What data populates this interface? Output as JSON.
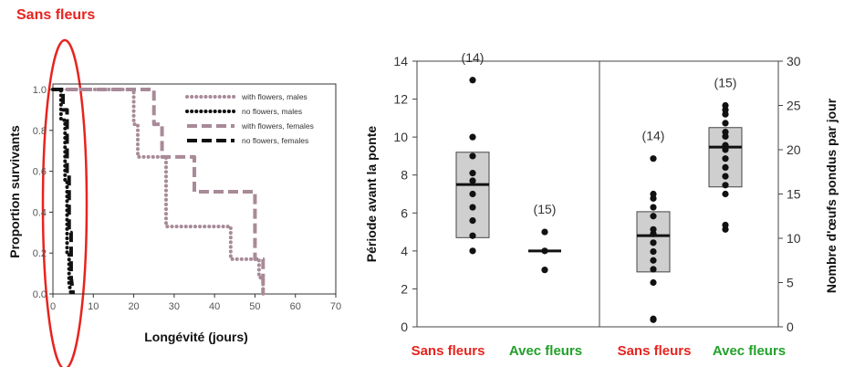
{
  "annotation": {
    "text": "Sans fleurs",
    "color": "#e8231e"
  },
  "chart_data": [
    {
      "type": "line",
      "title": "",
      "xlabel": "Longévité (jours)",
      "ylabel": "Proportion survivants",
      "xlim": [
        0,
        70
      ],
      "ylim": [
        0,
        1.0
      ],
      "xticks": [
        "0",
        "10",
        "20",
        "30",
        "40",
        "50",
        "60",
        "70"
      ],
      "yticks": [
        "0.0",
        "0.2",
        "0.4",
        "0.6",
        "0.8",
        "1.0"
      ],
      "legend_position": "top-right",
      "series": [
        {
          "name": "with flowers, males",
          "style": "dotted",
          "color": "#a88a98",
          "x": [
            0,
            20,
            20,
            21,
            21,
            28,
            28,
            44,
            44,
            51,
            51,
            52,
            52
          ],
          "y": [
            1.0,
            1.0,
            0.83,
            0.83,
            0.67,
            0.67,
            0.33,
            0.33,
            0.17,
            0.17,
            0.08,
            0.08,
            0.0
          ]
        },
        {
          "name": "no flowers, males",
          "style": "dotted",
          "color": "#111111",
          "x": [
            0,
            2,
            2,
            3,
            3,
            3.5,
            3.5,
            4,
            4,
            4.5
          ],
          "y": [
            1.0,
            1.0,
            0.85,
            0.85,
            0.55,
            0.55,
            0.2,
            0.2,
            0.05,
            0.0
          ]
        },
        {
          "name": "with flowers, females",
          "style": "dashed",
          "color": "#a88a98",
          "x": [
            0,
            25,
            25,
            27,
            27,
            35,
            35,
            39,
            39,
            50,
            50,
            52,
            52
          ],
          "y": [
            1.0,
            1.0,
            0.83,
            0.83,
            0.67,
            0.67,
            0.5,
            0.5,
            0.5,
            0.5,
            0.17,
            0.17,
            0.0
          ]
        },
        {
          "name": "no flowers, females",
          "style": "dashed",
          "color": "#111111",
          "x": [
            0,
            2.5,
            2.5,
            3.5,
            3.5,
            4,
            4,
            4.5,
            4.5,
            5
          ],
          "y": [
            1.0,
            1.0,
            0.9,
            0.9,
            0.6,
            0.6,
            0.3,
            0.3,
            0.08,
            0.0
          ]
        }
      ]
    },
    {
      "type": "box",
      "title": "",
      "xlabel": "",
      "ylabel_left": "Période avant la ponte",
      "ylabel_right": "Nombre d'œufs pondus par jour",
      "ylim_left": [
        0,
        14
      ],
      "ylim_right": [
        0,
        30
      ],
      "yticks_left": [
        "0",
        "2",
        "4",
        "6",
        "8",
        "10",
        "12",
        "14"
      ],
      "yticks_right": [
        "0",
        "5",
        "10",
        "15",
        "20",
        "25",
        "30"
      ],
      "groups": [
        {
          "label": "Sans fleurs",
          "color": "#e8231e",
          "axis": "left",
          "n": "(14)",
          "q1": 4.7,
          "median": 7.5,
          "q3": 9.2,
          "points": [
            4.0,
            4.8,
            5.6,
            6.3,
            7.0,
            7.7,
            8.1,
            9.0,
            10.0,
            13.0
          ]
        },
        {
          "label": "Avec fleurs",
          "color": "#22a02a",
          "axis": "left",
          "n": "(15)",
          "q1": 4.0,
          "median": 4.0,
          "q3": 4.0,
          "points": [
            3.0,
            4.0,
            5.0
          ]
        },
        {
          "label": "Sans fleurs",
          "color": "#e8231e",
          "axis": "right",
          "n": "(14)",
          "q1": 6.2,
          "median": 10.3,
          "q3": 13.0,
          "points": [
            0.8,
            0.9,
            5.0,
            6.5,
            7.5,
            8.5,
            9.5,
            10.5,
            11.0,
            12.5,
            13.5,
            14.5,
            15.0,
            19.0
          ]
        },
        {
          "label": "Avec fleurs",
          "color": "#22a02a",
          "axis": "right",
          "n": "(15)",
          "q1": 15.8,
          "median": 20.3,
          "q3": 22.5,
          "points": [
            11.0,
            11.5,
            15.0,
            16.0,
            17.0,
            18.0,
            19.0,
            20.0,
            20.5,
            21.5,
            22.0,
            23.0,
            24.0,
            24.5,
            25.0
          ]
        }
      ]
    }
  ]
}
